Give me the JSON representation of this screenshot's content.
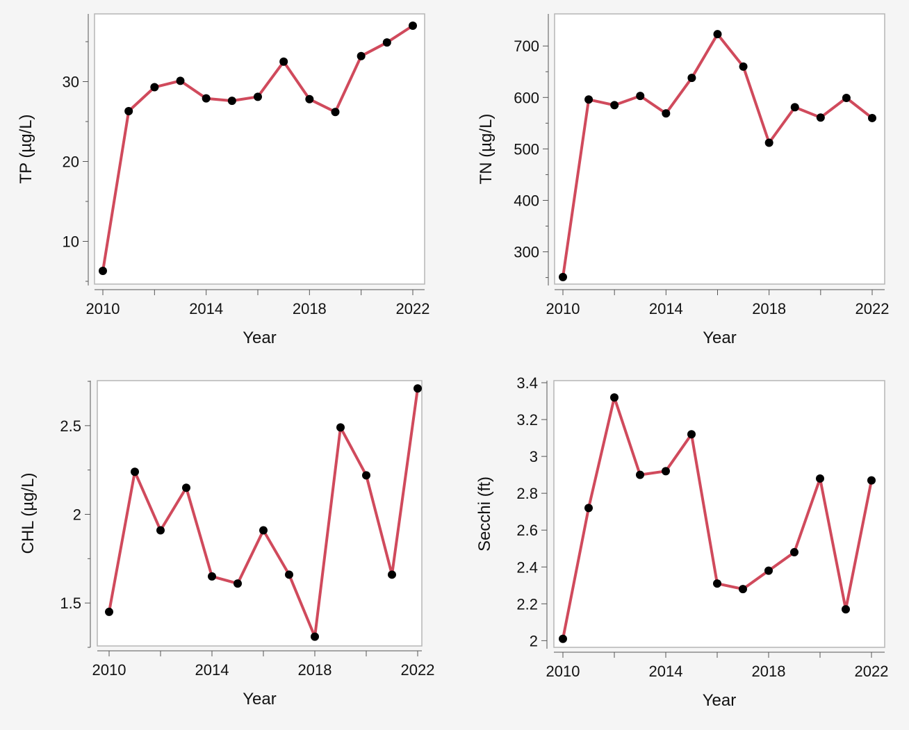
{
  "style": {
    "line_color": "#d04a5c",
    "point_color": "#000000",
    "frame_color": "#b5b5b5",
    "background": "#f5f5f5",
    "panel_background": "#ffffff"
  },
  "chart_data": [
    {
      "id": "tp",
      "type": "line",
      "xlabel": "Year",
      "ylabel": "TP (µg/L)",
      "xlim": [
        2010,
        2022
      ],
      "ylim": [
        5,
        37
      ],
      "xticks": [
        2010,
        2014,
        2018,
        2022
      ],
      "xticks_minor": [
        2012,
        2016,
        2020
      ],
      "yticks": [
        10,
        20,
        30
      ],
      "yticks_minor": [
        5,
        15,
        25,
        35
      ],
      "ytick_labels": [
        "10",
        "20",
        "30"
      ],
      "x": [
        2010,
        2011,
        2012,
        2013,
        2014,
        2015,
        2016,
        2017,
        2018,
        2019,
        2020,
        2021,
        2022
      ],
      "y": [
        6.3,
        26.3,
        29.3,
        30.1,
        27.9,
        27.6,
        28.1,
        32.5,
        27.8,
        26.2,
        33.2,
        34.9,
        37.0
      ],
      "grid": false,
      "legend": "none"
    },
    {
      "id": "tn",
      "type": "line",
      "xlabel": "Year",
      "ylabel": "TN (µg/L)",
      "xlim": [
        2010,
        2022
      ],
      "ylim": [
        240,
        730
      ],
      "xticks": [
        2010,
        2014,
        2018,
        2022
      ],
      "xticks_minor": [
        2012,
        2016,
        2020
      ],
      "yticks": [
        300,
        400,
        500,
        600,
        700
      ],
      "yticks_minor": [
        250,
        350,
        450,
        550,
        650
      ],
      "ytick_labels": [
        "300",
        "400",
        "500",
        "600",
        "700"
      ],
      "x": [
        2010,
        2011,
        2012,
        2013,
        2014,
        2015,
        2016,
        2017,
        2018,
        2019,
        2020,
        2021,
        2022
      ],
      "y": [
        251,
        596,
        585,
        603,
        569,
        638,
        723,
        660,
        512,
        581,
        561,
        599,
        560
      ],
      "grid": false,
      "legend": "none"
    },
    {
      "id": "chl",
      "type": "line",
      "xlabel": "Year",
      "ylabel": "CHL (µg/L)",
      "xlim": [
        2010,
        2022
      ],
      "ylim": [
        1.25,
        2.75
      ],
      "xticks": [
        2010,
        2014,
        2018,
        2022
      ],
      "xticks_minor": [
        2012,
        2016,
        2020
      ],
      "yticks": [
        1.5,
        2,
        2.5
      ],
      "yticks_minor": [
        1.25,
        1.75,
        2.25,
        2.75
      ],
      "ytick_labels": [
        "1.5",
        "2",
        "2.5"
      ],
      "x": [
        2010,
        2011,
        2012,
        2013,
        2014,
        2015,
        2016,
        2017,
        2018,
        2019,
        2020,
        2021,
        2022
      ],
      "y": [
        1.45,
        2.24,
        1.91,
        2.15,
        1.65,
        1.61,
        1.91,
        1.66,
        1.31,
        2.49,
        2.22,
        1.66,
        2.71
      ],
      "grid": false,
      "legend": "none"
    },
    {
      "id": "secchi",
      "type": "line",
      "xlabel": "Year",
      "ylabel": "Secchi (ft)",
      "xlim": [
        2010,
        2022
      ],
      "ylim": [
        1.96,
        3.4
      ],
      "xticks": [
        2010,
        2014,
        2018,
        2022
      ],
      "xticks_minor": [
        2012,
        2016,
        2020
      ],
      "yticks": [
        2,
        2.2,
        2.4,
        2.6,
        2.8,
        3,
        3.2,
        3.4
      ],
      "yticks_minor": [],
      "ytick_labels": [
        "2",
        "2.2",
        "2.4",
        "2.6",
        "2.8",
        "3",
        "3.2",
        "3.4"
      ],
      "x": [
        2010,
        2011,
        2012,
        2013,
        2014,
        2015,
        2016,
        2017,
        2018,
        2019,
        2020,
        2021,
        2022
      ],
      "y": [
        2.01,
        2.72,
        3.32,
        2.9,
        2.92,
        3.12,
        2.31,
        2.28,
        2.38,
        2.48,
        2.88,
        2.17,
        2.87
      ],
      "grid": false,
      "legend": "none"
    }
  ]
}
